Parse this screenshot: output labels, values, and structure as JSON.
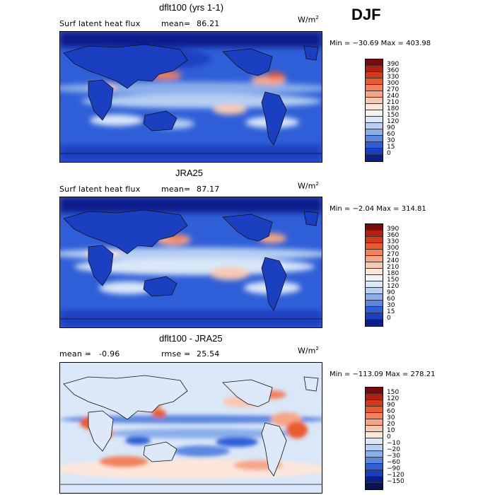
{
  "season": "DJF",
  "panels": [
    {
      "title": "dflt100 (yrs 1-1)",
      "left_label": "Surf latent heat flux",
      "stat_label": "mean=",
      "stat_value": "86.21",
      "unit": "W/m",
      "unit_exp": "2",
      "minmax": "Min = −30.69 Max = 403.98",
      "levels": [
        "390",
        "360",
        "330",
        "300",
        "270",
        "240",
        "210",
        "180",
        "150",
        "120",
        "90",
        "60",
        "30",
        "15",
        "0"
      ],
      "colors": [
        "#7a0a0a",
        "#b3200d",
        "#d33a1a",
        "#e95b2e",
        "#f2815a",
        "#f6a587",
        "#f9c8b0",
        "#fce6da",
        "#f3f3f3",
        "#d9e7f8",
        "#b6cff2",
        "#8aaeea",
        "#5b87e0",
        "#2f5fd8",
        "#1a3fc0",
        "#0b1f8a"
      ]
    },
    {
      "title": "JRA25",
      "left_label": "Surf latent heat flux",
      "stat_label": "mean=",
      "stat_value": "87.17",
      "unit": "W/m",
      "unit_exp": "2",
      "minmax": "Min = −2.04 Max = 314.81",
      "levels": [
        "390",
        "360",
        "330",
        "300",
        "270",
        "240",
        "210",
        "180",
        "150",
        "120",
        "90",
        "60",
        "30",
        "15",
        "0"
      ],
      "colors": [
        "#7a0a0a",
        "#b3200d",
        "#d33a1a",
        "#e95b2e",
        "#f2815a",
        "#f6a587",
        "#f9c8b0",
        "#fce6da",
        "#f3f3f3",
        "#d9e7f8",
        "#b6cff2",
        "#8aaeea",
        "#5b87e0",
        "#2f5fd8",
        "#1a3fc0",
        "#0b1f8a"
      ]
    },
    {
      "title": "dflt100 - JRA25",
      "left_label": "mean =",
      "left_value": "-0.96",
      "stat_label": "rmse =",
      "stat_value": "25.54",
      "unit": "W/m",
      "unit_exp": "2",
      "minmax": "Min = −113.09 Max = 278.21",
      "levels": [
        "150",
        "120",
        "90",
        "60",
        "30",
        "20",
        "10",
        "0",
        "−10",
        "−20",
        "−30",
        "−60",
        "−90",
        "−120",
        "−150"
      ],
      "colors": [
        "#7a0a0a",
        "#b3200d",
        "#d33a1a",
        "#e95b2e",
        "#f2815a",
        "#f6a587",
        "#f9c8b0",
        "#fce6da",
        "#d9e7f8",
        "#b6cff2",
        "#8aaeea",
        "#5b87e0",
        "#2f5fd8",
        "#1a3fc0",
        "#0b1f8a",
        "#06125a"
      ]
    }
  ]
}
